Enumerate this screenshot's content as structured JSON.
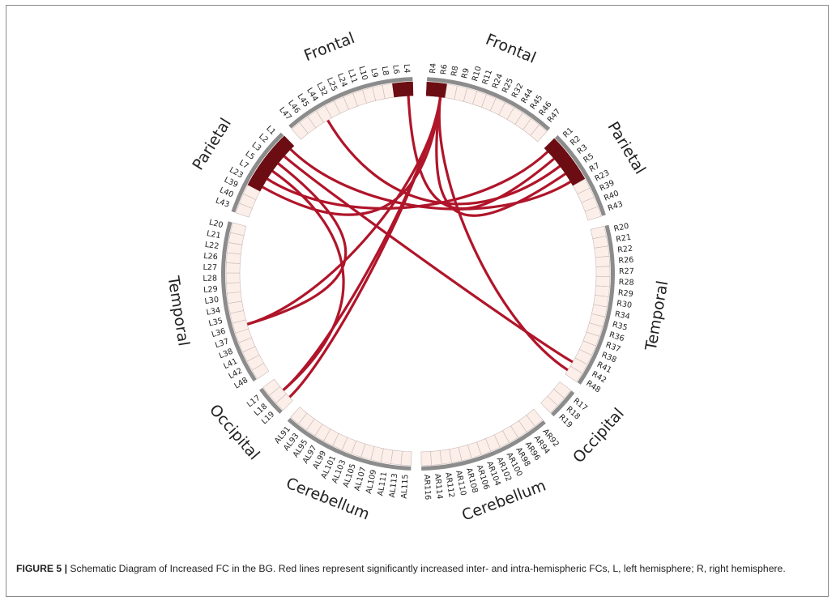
{
  "caption": {
    "label": "FIGURE 5 |",
    "text": " Schematic Diagram of Increased FC in the BG. Red lines represent significantly increased inter- and intra-hemispheric FCs, L, left hemisphere; R, right hemisphere."
  },
  "colors": {
    "link": "#b0152a",
    "highlight": "#6b0d12",
    "cell_fill": "#fcefea",
    "cell_stroke": "#c9b9b4",
    "band": "#8c8c8c",
    "text": "#222222"
  },
  "groups": [
    {
      "label": "Frontal",
      "nodes": [
        "R4",
        "R6",
        "R8",
        "R9",
        "R10",
        "R11",
        "R24",
        "R25",
        "R32",
        "R44",
        "R45",
        "R46",
        "R47"
      ]
    },
    {
      "label": "Parietal",
      "nodes": [
        "R1",
        "R2",
        "R3",
        "R5",
        "R7",
        "R23",
        "R39",
        "R40",
        "R43"
      ]
    },
    {
      "label": "Temporal",
      "nodes": [
        "R20",
        "R21",
        "R22",
        "R26",
        "R27",
        "R28",
        "R29",
        "R30",
        "R34",
        "R35",
        "R36",
        "R37",
        "R38",
        "R41",
        "R42",
        "R48"
      ]
    },
    {
      "label": "Occipital",
      "nodes": [
        "R17",
        "R18",
        "R19"
      ]
    },
    {
      "label": "Cerebellum",
      "nodes": [
        "AR92",
        "AR94",
        "AR96",
        "AR98",
        "AR100",
        "AR102",
        "AR104",
        "AR106",
        "AR108",
        "AR110",
        "AR112",
        "AR114",
        "AR116"
      ]
    },
    {
      "label": "Cerebellum",
      "nodes": [
        "AL115",
        "AL113",
        "AL111",
        "AL109",
        "AL107",
        "AL105",
        "AL103",
        "AL101",
        "AL99",
        "AL97",
        "AL95",
        "AL93",
        "AL91"
      ]
    },
    {
      "label": "Occipital",
      "nodes": [
        "L19",
        "L18",
        "L17"
      ]
    },
    {
      "label": "Temporal",
      "nodes": [
        "L48",
        "L42",
        "L41",
        "L38",
        "L37",
        "L36",
        "L35",
        "L34",
        "L30",
        "L29",
        "L28",
        "L27",
        "L26",
        "L22",
        "L21",
        "L20"
      ]
    },
    {
      "label": "Parietal",
      "nodes": [
        "L43",
        "L40",
        "L39",
        "L23",
        "L7",
        "L5",
        "L3",
        "L2",
        "L1"
      ]
    },
    {
      "label": "Frontal",
      "nodes": [
        "L47",
        "L46",
        "L45",
        "L44",
        "L32",
        "L25",
        "L24",
        "L11",
        "L10",
        "L9",
        "L8",
        "L6",
        "L4"
      ]
    }
  ],
  "highlighted_nodes": [
    "R4",
    "R6",
    "R1",
    "R2",
    "R3",
    "R5",
    "R7",
    "L4",
    "L6",
    "L1",
    "L2",
    "L3",
    "L5",
    "L7",
    "L23"
  ],
  "connections": [
    [
      "R6",
      "L23"
    ],
    [
      "R6",
      "L19"
    ],
    [
      "R6",
      "L18"
    ],
    [
      "R6",
      "R48"
    ],
    [
      "R6",
      "L36"
    ],
    [
      "R1",
      "L7"
    ],
    [
      "R2",
      "L4"
    ],
    [
      "R3",
      "L44"
    ],
    [
      "R5",
      "R6"
    ],
    [
      "R7",
      "L1"
    ],
    [
      "L2",
      "R42"
    ],
    [
      "L5",
      "L18"
    ],
    [
      "L3",
      "L36"
    ]
  ]
}
